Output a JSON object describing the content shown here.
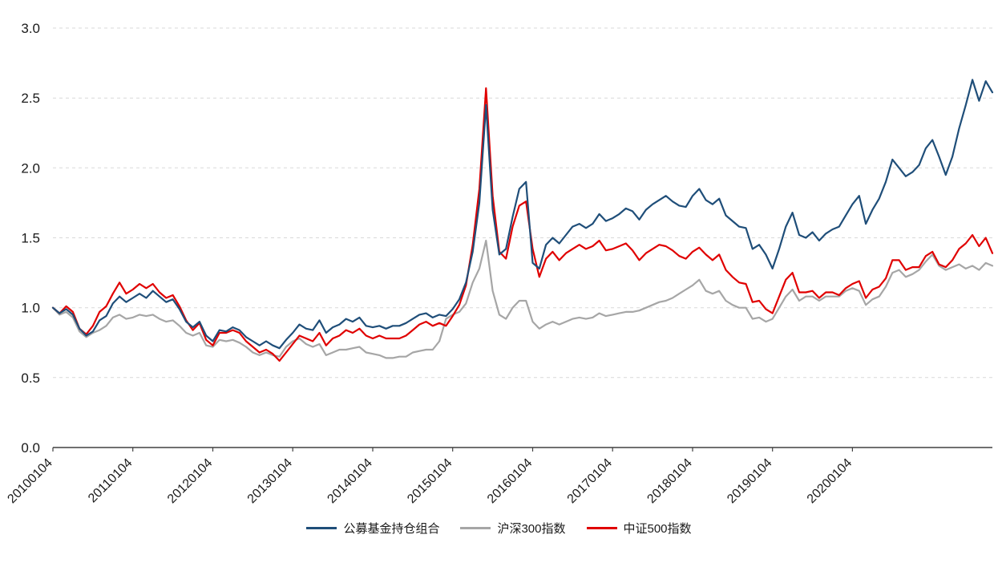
{
  "chart_data": {
    "type": "line",
    "title": "",
    "xlabel": "",
    "ylabel": "",
    "ylim": [
      0.0,
      3.0
    ],
    "y_ticks": [
      0.0,
      0.5,
      1.0,
      1.5,
      2.0,
      2.5,
      3.0
    ],
    "y_tick_labels": [
      "0.0",
      "0.5",
      "1.0",
      "1.5",
      "2.0",
      "2.5",
      "3.0"
    ],
    "grid": "horizontal-dashed",
    "legend_position": "bottom",
    "x_frequency": "monthly points from 2010-01 through 2021-10, values rebased to 1.0 at 20100104",
    "x_tick_labels": [
      "20100104",
      "20110104",
      "20120104",
      "20130104",
      "20140104",
      "20150104",
      "20160104",
      "20170104",
      "20180104",
      "20190104",
      "20200104"
    ],
    "x_tick_indices": [
      0,
      12,
      24,
      36,
      48,
      60,
      72,
      84,
      96,
      108,
      120
    ],
    "series": [
      {
        "name": "公募基金持仓组合",
        "color": "#1f4e79",
        "values": [
          1.0,
          0.96,
          0.99,
          0.95,
          0.85,
          0.8,
          0.83,
          0.91,
          0.94,
          1.03,
          1.08,
          1.04,
          1.07,
          1.1,
          1.07,
          1.12,
          1.08,
          1.04,
          1.06,
          0.99,
          0.9,
          0.86,
          0.9,
          0.8,
          0.76,
          0.84,
          0.83,
          0.86,
          0.84,
          0.79,
          0.76,
          0.73,
          0.76,
          0.73,
          0.71,
          0.77,
          0.82,
          0.88,
          0.85,
          0.84,
          0.91,
          0.82,
          0.86,
          0.88,
          0.92,
          0.9,
          0.93,
          0.87,
          0.86,
          0.87,
          0.85,
          0.87,
          0.87,
          0.89,
          0.92,
          0.95,
          0.96,
          0.93,
          0.95,
          0.94,
          0.99,
          1.06,
          1.18,
          1.4,
          1.75,
          2.45,
          1.7,
          1.38,
          1.42,
          1.65,
          1.85,
          1.9,
          1.32,
          1.28,
          1.45,
          1.5,
          1.46,
          1.52,
          1.58,
          1.6,
          1.57,
          1.6,
          1.67,
          1.62,
          1.64,
          1.67,
          1.71,
          1.69,
          1.63,
          1.7,
          1.74,
          1.77,
          1.8,
          1.76,
          1.73,
          1.72,
          1.8,
          1.85,
          1.77,
          1.74,
          1.78,
          1.66,
          1.62,
          1.58,
          1.57,
          1.42,
          1.45,
          1.38,
          1.28,
          1.42,
          1.58,
          1.68,
          1.52,
          1.5,
          1.54,
          1.48,
          1.53,
          1.56,
          1.58,
          1.66,
          1.74,
          1.8,
          1.6,
          1.7,
          1.78,
          1.9,
          2.06,
          2.0,
          1.94,
          1.97,
          2.02,
          2.14,
          2.2,
          2.08,
          1.95,
          2.08,
          2.28,
          2.45,
          2.63,
          2.48,
          2.62,
          2.54
        ]
      },
      {
        "name": "沪深300指数",
        "color": "#a6a6a6",
        "values": [
          1.0,
          0.95,
          0.97,
          0.93,
          0.83,
          0.79,
          0.82,
          0.84,
          0.87,
          0.93,
          0.95,
          0.92,
          0.93,
          0.95,
          0.94,
          0.95,
          0.92,
          0.9,
          0.91,
          0.87,
          0.82,
          0.8,
          0.82,
          0.73,
          0.72,
          0.77,
          0.76,
          0.77,
          0.75,
          0.72,
          0.68,
          0.66,
          0.68,
          0.66,
          0.65,
          0.72,
          0.76,
          0.78,
          0.74,
          0.72,
          0.74,
          0.66,
          0.68,
          0.7,
          0.7,
          0.71,
          0.72,
          0.68,
          0.67,
          0.66,
          0.64,
          0.64,
          0.65,
          0.65,
          0.68,
          0.69,
          0.7,
          0.7,
          0.76,
          0.92,
          0.95,
          0.97,
          1.03,
          1.18,
          1.28,
          1.48,
          1.12,
          0.95,
          0.92,
          1.0,
          1.05,
          1.05,
          0.9,
          0.85,
          0.88,
          0.9,
          0.88,
          0.9,
          0.92,
          0.93,
          0.92,
          0.93,
          0.96,
          0.94,
          0.95,
          0.96,
          0.97,
          0.97,
          0.98,
          1.0,
          1.02,
          1.04,
          1.05,
          1.07,
          1.1,
          1.13,
          1.16,
          1.2,
          1.12,
          1.1,
          1.12,
          1.05,
          1.02,
          1.0,
          1.0,
          0.92,
          0.93,
          0.9,
          0.92,
          1.0,
          1.08,
          1.13,
          1.05,
          1.08,
          1.08,
          1.05,
          1.08,
          1.08,
          1.08,
          1.12,
          1.14,
          1.12,
          1.02,
          1.06,
          1.08,
          1.15,
          1.25,
          1.27,
          1.22,
          1.24,
          1.27,
          1.33,
          1.38,
          1.3,
          1.27,
          1.29,
          1.31,
          1.28,
          1.3,
          1.27,
          1.32,
          1.3
        ]
      },
      {
        "name": "中证500指数",
        "color": "#e00000",
        "values": [
          1.0,
          0.96,
          1.01,
          0.97,
          0.85,
          0.81,
          0.87,
          0.97,
          1.01,
          1.1,
          1.18,
          1.1,
          1.13,
          1.17,
          1.14,
          1.17,
          1.11,
          1.07,
          1.09,
          1.01,
          0.91,
          0.84,
          0.89,
          0.77,
          0.73,
          0.82,
          0.82,
          0.84,
          0.82,
          0.76,
          0.72,
          0.68,
          0.7,
          0.67,
          0.62,
          0.68,
          0.74,
          0.8,
          0.78,
          0.76,
          0.82,
          0.73,
          0.78,
          0.8,
          0.84,
          0.82,
          0.85,
          0.8,
          0.78,
          0.8,
          0.78,
          0.78,
          0.78,
          0.8,
          0.84,
          0.88,
          0.9,
          0.87,
          0.89,
          0.87,
          0.94,
          1.02,
          1.16,
          1.45,
          1.85,
          2.57,
          1.8,
          1.4,
          1.35,
          1.58,
          1.73,
          1.76,
          1.42,
          1.22,
          1.35,
          1.4,
          1.34,
          1.39,
          1.42,
          1.45,
          1.42,
          1.44,
          1.48,
          1.41,
          1.42,
          1.44,
          1.46,
          1.41,
          1.34,
          1.39,
          1.42,
          1.45,
          1.44,
          1.41,
          1.37,
          1.35,
          1.4,
          1.43,
          1.38,
          1.34,
          1.38,
          1.27,
          1.22,
          1.18,
          1.17,
          1.04,
          1.05,
          0.99,
          0.96,
          1.08,
          1.2,
          1.25,
          1.11,
          1.11,
          1.12,
          1.07,
          1.11,
          1.11,
          1.09,
          1.14,
          1.17,
          1.19,
          1.07,
          1.13,
          1.15,
          1.21,
          1.34,
          1.34,
          1.27,
          1.29,
          1.29,
          1.37,
          1.4,
          1.31,
          1.29,
          1.34,
          1.42,
          1.46,
          1.52,
          1.44,
          1.5,
          1.39
        ]
      }
    ]
  }
}
